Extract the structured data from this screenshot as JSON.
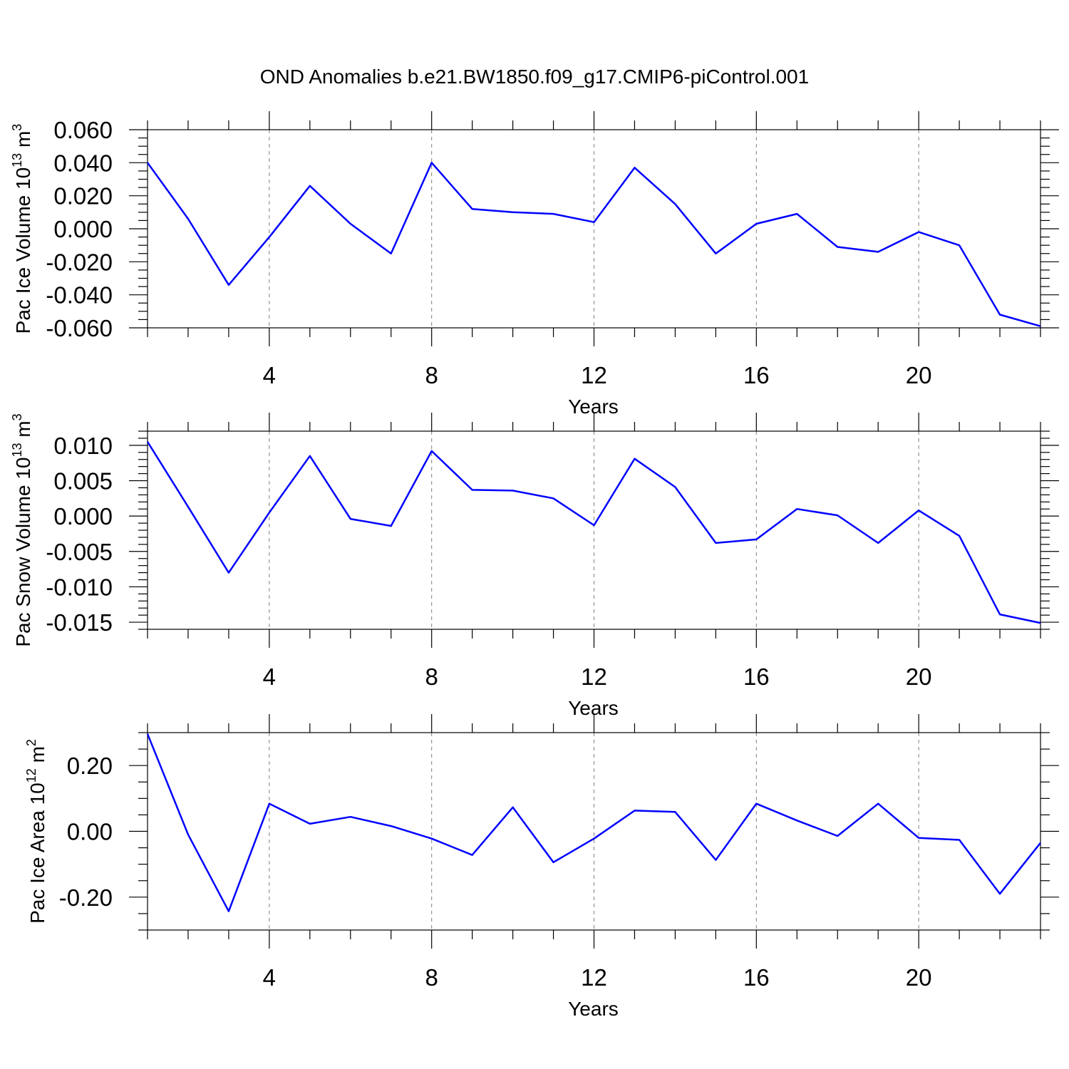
{
  "title": "OND Anomalies b.e21.BW1850.f09_g17.CMIP6-piControl.001",
  "chart_data": [
    {
      "type": "line",
      "ylabel": "Pac Ice Volume 10",
      "ylabel_sup": "13",
      "ylabel_unit": "m",
      "ylabel_unit_sup": "3",
      "xlabel": "Years",
      "xlim": [
        1,
        23
      ],
      "ylim": [
        -0.06,
        0.06
      ],
      "xticks": [
        4,
        8,
        12,
        16,
        20
      ],
      "xtick_labels": [
        "4",
        "8",
        "12",
        "16",
        "20"
      ],
      "yticks": [
        -0.06,
        -0.04,
        -0.02,
        0,
        0.02,
        0.04,
        0.06
      ],
      "ytick_labels": [
        "-0.060",
        "-0.040",
        "-0.020",
        "0.000",
        "0.020",
        "0.040",
        "0.060"
      ],
      "grid": "vertical dashed at major x ticks",
      "line_color": "#0000ff",
      "x": [
        1,
        2,
        3,
        4,
        5,
        6,
        7,
        8,
        9,
        10,
        11,
        12,
        13,
        14,
        15,
        16,
        17,
        18,
        19,
        20,
        21,
        22,
        23
      ],
      "y": [
        0.04,
        0.006,
        -0.034,
        -0.005,
        0.026,
        0.003,
        -0.015,
        0.04,
        0.012,
        0.01,
        0.009,
        0.004,
        0.037,
        0.015,
        -0.015,
        0.003,
        0.009,
        -0.011,
        -0.014,
        -0.002,
        -0.01,
        -0.052,
        -0.059
      ]
    },
    {
      "type": "line",
      "ylabel": "Pac Snow Volume 10",
      "ylabel_sup": "13",
      "ylabel_unit": "m",
      "ylabel_unit_sup": "3",
      "xlabel": "Years",
      "xlim": [
        1,
        23
      ],
      "ylim": [
        -0.016,
        0.012
      ],
      "xticks": [
        4,
        8,
        12,
        16,
        20
      ],
      "xtick_labels": [
        "4",
        "8",
        "12",
        "16",
        "20"
      ],
      "yticks": [
        -0.015,
        -0.01,
        -0.005,
        0,
        0.005,
        0.01
      ],
      "ytick_labels": [
        "-0.015",
        "-0.010",
        "-0.005",
        "0.000",
        "0.005",
        "0.010"
      ],
      "grid": "vertical dashed at major x ticks",
      "line_color": "#0000ff",
      "x": [
        1,
        2,
        3,
        4,
        5,
        6,
        7,
        8,
        9,
        10,
        11,
        12,
        13,
        14,
        15,
        16,
        17,
        18,
        19,
        20,
        21,
        22,
        23
      ],
      "y": [
        0.0105,
        0.0013,
        -0.008,
        0.0005,
        0.0085,
        -0.0004,
        -0.0014,
        0.0092,
        0.0037,
        0.0036,
        0.0025,
        -0.0013,
        0.0081,
        0.0041,
        -0.0038,
        -0.0033,
        0.001,
        0.0001,
        -0.0038,
        0.0008,
        -0.0028,
        -0.0139,
        -0.0151
      ]
    },
    {
      "type": "line",
      "ylabel": "Pac Ice Area 10",
      "ylabel_sup": "12",
      "ylabel_unit": "m",
      "ylabel_unit_sup": "2",
      "xlabel": "Years",
      "xlim": [
        1,
        23
      ],
      "ylim": [
        -0.3,
        0.3
      ],
      "xticks": [
        4,
        8,
        12,
        16,
        20
      ],
      "xtick_labels": [
        "4",
        "8",
        "12",
        "16",
        "20"
      ],
      "yticks": [
        -0.2,
        0,
        0.2
      ],
      "ytick_labels": [
        "-0.20",
        "0.00",
        "0.20"
      ],
      "grid": "vertical dashed at major x ticks",
      "line_color": "#0000ff",
      "x": [
        1,
        2,
        3,
        4,
        5,
        6,
        7,
        8,
        9,
        10,
        11,
        12,
        13,
        14,
        15,
        16,
        17,
        18,
        19,
        20,
        21,
        22,
        23
      ],
      "y": [
        0.296,
        -0.01,
        -0.243,
        0.084,
        0.023,
        0.044,
        0.016,
        -0.022,
        -0.072,
        0.073,
        -0.094,
        -0.022,
        0.063,
        0.059,
        -0.087,
        0.084,
        0.033,
        -0.014,
        0.084,
        -0.02,
        -0.026,
        -0.19,
        -0.035
      ]
    }
  ]
}
